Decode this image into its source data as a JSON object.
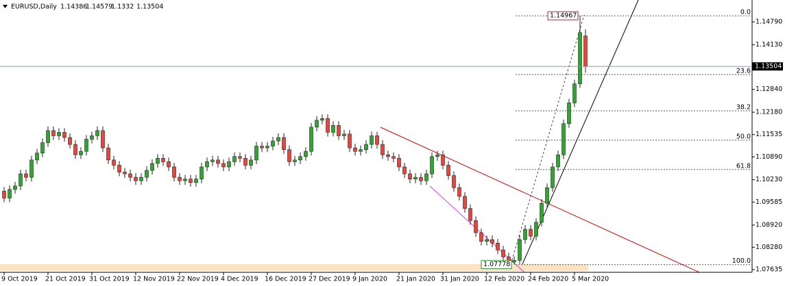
{
  "chart_data": {
    "type": "candlestick",
    "symbol": "EURUSD,Daily",
    "up_color": "#2ea82e",
    "down_color": "#e8453c",
    "categories": [
      "9 Oct 2019",
      null,
      null,
      null,
      null,
      null,
      null,
      null,
      "21 Oct 2019",
      null,
      null,
      null,
      null,
      null,
      null,
      null,
      "31 Oct 2019",
      null,
      null,
      null,
      null,
      null,
      null,
      null,
      "12 Nov 2019",
      null,
      null,
      null,
      null,
      null,
      null,
      null,
      "22 Nov 2019",
      null,
      null,
      null,
      null,
      null,
      null,
      null,
      "4 Dec 2019",
      null,
      null,
      null,
      null,
      null,
      null,
      null,
      "16 Dec 2019",
      null,
      null,
      null,
      null,
      null,
      null,
      null,
      "27 Dec 2019",
      null,
      null,
      null,
      null,
      null,
      null,
      null,
      "9 Jan 2020",
      null,
      null,
      null,
      null,
      null,
      null,
      null,
      "21 Jan 2020",
      null,
      null,
      null,
      null,
      null,
      null,
      null,
      "31 Jan 2020",
      null,
      null,
      null,
      null,
      null,
      null,
      null,
      "12 Feb 2020",
      null,
      null,
      null,
      null,
      null,
      null,
      null,
      "24 Feb 2020",
      null,
      null,
      null,
      null,
      null,
      null,
      null,
      "5 Mar 2020",
      null,
      null
    ],
    "open": [
      1.099,
      1.097,
      1.0995,
      1.1005,
      1.104,
      1.103,
      1.108,
      1.11,
      1.113,
      1.1165,
      1.115,
      1.116,
      1.1145,
      1.1125,
      1.1095,
      1.1105,
      1.114,
      1.115,
      1.1165,
      1.1115,
      1.108,
      1.1065,
      1.1045,
      1.104,
      1.103,
      1.102,
      1.103,
      1.105,
      1.107,
      1.1085,
      1.1075,
      1.106,
      1.103,
      1.102,
      1.1025,
      1.1015,
      1.1025,
      1.106,
      1.1075,
      1.108,
      1.107,
      1.106,
      1.1075,
      1.109,
      1.1085,
      1.1065,
      1.108,
      1.112,
      1.1115,
      1.112,
      1.1135,
      1.1145,
      1.111,
      1.1075,
      1.108,
      1.109,
      1.1105,
      1.1175,
      1.1195,
      1.12,
      1.116,
      1.118,
      1.115,
      1.1155,
      1.1115,
      1.1105,
      1.111,
      1.1125,
      1.115,
      1.1125,
      1.1095,
      1.109,
      1.1085,
      1.106,
      1.104,
      1.1025,
      1.103,
      1.102,
      1.104,
      1.109,
      1.1095,
      1.1065,
      1.1035,
      1.1,
      1.0975,
      1.094,
      1.0905,
      1.087,
      1.0845,
      1.085,
      1.084,
      1.082,
      1.08,
      1.0785,
      1.079,
      1.085,
      1.088,
      1.086,
      1.09,
      1.0955,
      1.1,
      1.106,
      1.1095,
      1.1185,
      1.1245,
      1.13,
      1.14386
    ],
    "high": [
      1.1002,
      1.1007,
      1.1017,
      1.1052,
      1.1052,
      1.1092,
      1.1112,
      1.1142,
      1.1177,
      1.1177,
      1.1172,
      1.1172,
      1.1157,
      1.1137,
      1.1117,
      1.1152,
      1.1162,
      1.1177,
      1.1177,
      1.1127,
      1.1092,
      1.1077,
      1.1057,
      1.1052,
      1.1042,
      1.1042,
      1.1062,
      1.1082,
      1.1097,
      1.1097,
      1.1087,
      1.1072,
      1.1042,
      1.1037,
      1.1037,
      1.1037,
      1.1072,
      1.1087,
      1.1092,
      1.1092,
      1.1082,
      1.1087,
      1.1102,
      1.1102,
      1.1097,
      1.1092,
      1.1132,
      1.1132,
      1.1132,
      1.1147,
      1.1157,
      1.1157,
      1.1122,
      1.1092,
      1.1102,
      1.1117,
      1.1187,
      1.1207,
      1.1212,
      1.1212,
      1.1192,
      1.1192,
      1.1167,
      1.1167,
      1.1127,
      1.1122,
      1.1137,
      1.1162,
      1.1162,
      1.1137,
      1.1107,
      1.1102,
      1.1097,
      1.1072,
      1.1052,
      1.1042,
      1.1042,
      1.1052,
      1.1102,
      1.1107,
      1.1107,
      1.1077,
      1.1047,
      1.1012,
      1.0987,
      1.0952,
      1.0917,
      1.0882,
      1.0862,
      1.0862,
      1.0852,
      1.0832,
      1.0812,
      1.0802,
      1.0862,
      1.0892,
      1.0892,
      1.0912,
      1.0967,
      1.1012,
      1.1072,
      1.1107,
      1.1197,
      1.1257,
      1.1312,
      1.14967,
      1.14579
    ],
    "low": [
      1.0958,
      1.0958,
      1.0983,
      1.0993,
      1.1018,
      1.1018,
      1.1068,
      1.1088,
      1.1118,
      1.1138,
      1.1138,
      1.1133,
      1.1113,
      1.1083,
      1.1083,
      1.1093,
      1.1128,
      1.1138,
      1.1103,
      1.1068,
      1.1053,
      1.1033,
      1.1028,
      1.1018,
      1.1008,
      1.1008,
      1.1018,
      1.1038,
      1.1058,
      1.1063,
      1.1048,
      1.1018,
      1.1008,
      1.1008,
      1.1003,
      1.1003,
      1.1013,
      1.1048,
      1.1063,
      1.1058,
      1.1048,
      1.1048,
      1.1063,
      1.1073,
      1.1053,
      1.1053,
      1.1068,
      1.1103,
      1.1103,
      1.1108,
      1.1123,
      1.1098,
      1.1063,
      1.1063,
      1.1068,
      1.1078,
      1.1093,
      1.1163,
      1.1183,
      1.1148,
      1.1148,
      1.1138,
      1.1138,
      1.1103,
      1.1093,
      1.1093,
      1.1098,
      1.1113,
      1.1113,
      1.1083,
      1.1078,
      1.1073,
      1.1048,
      1.1028,
      1.1013,
      1.1013,
      1.1008,
      1.1008,
      1.1028,
      1.1078,
      1.1053,
      1.1023,
      1.0988,
      1.0963,
      1.0928,
      1.0893,
      1.0858,
      1.0833,
      1.0833,
      1.0828,
      1.0808,
      1.0788,
      1.078,
      1.07778,
      1.078,
      1.0838,
      1.0848,
      1.0848,
      1.0888,
      1.0943,
      1.0988,
      1.1048,
      1.1083,
      1.1173,
      1.1233,
      1.1288,
      1.1332
    ],
    "close": [
      1.097,
      1.0995,
      1.1005,
      1.104,
      1.103,
      1.108,
      1.11,
      1.113,
      1.1165,
      1.115,
      1.116,
      1.1145,
      1.1125,
      1.1095,
      1.1105,
      1.114,
      1.115,
      1.1165,
      1.1115,
      1.108,
      1.1065,
      1.1045,
      1.104,
      1.103,
      1.102,
      1.103,
      1.105,
      1.107,
      1.1085,
      1.1075,
      1.106,
      1.103,
      1.102,
      1.1025,
      1.1015,
      1.1025,
      1.106,
      1.1075,
      1.108,
      1.107,
      1.106,
      1.1075,
      1.109,
      1.1085,
      1.1065,
      1.108,
      1.112,
      1.1115,
      1.112,
      1.1135,
      1.1145,
      1.111,
      1.1075,
      1.108,
      1.109,
      1.1105,
      1.1175,
      1.1195,
      1.12,
      1.116,
      1.118,
      1.115,
      1.1155,
      1.1115,
      1.1105,
      1.111,
      1.1125,
      1.115,
      1.1125,
      1.1095,
      1.109,
      1.1085,
      1.106,
      1.104,
      1.1025,
      1.103,
      1.102,
      1.104,
      1.109,
      1.1095,
      1.1065,
      1.1035,
      1.1,
      1.0975,
      1.094,
      1.0905,
      1.087,
      1.0845,
      1.085,
      1.084,
      1.082,
      1.08,
      1.0785,
      1.079,
      1.085,
      1.088,
      1.086,
      1.09,
      1.0955,
      1.1,
      1.106,
      1.1095,
      1.1185,
      1.1245,
      1.13,
      1.1448,
      1.13504
    ],
    "ylim": [
      1.07555,
      1.15423
    ],
    "yticks": [
      {
        "value": 1.1479,
        "label": "1.14790"
      },
      {
        "value": 1.1413,
        "label": "1.14130"
      },
      {
        "value": 1.1284,
        "label": "1.12840"
      },
      {
        "value": 1.1218,
        "label": "1.12180"
      },
      1.11535,
      {
        "value": 1.1089,
        "label": "1.10890"
      },
      {
        "value": 1.1023,
        "label": "1.10230"
      },
      1.09585,
      {
        "value": 1.0892,
        "label": "1.08920"
      },
      {
        "value": 1.0828,
        "label": "1.08280"
      },
      1.07635
    ],
    "fib_levels": [
      {
        "value": 0,
        "label": "0.0"
      },
      23.6,
      38.2,
      {
        "value": 50,
        "label": "50.0"
      },
      61.8,
      {
        "value": 100,
        "label": "100.0"
      }
    ]
  }
}
